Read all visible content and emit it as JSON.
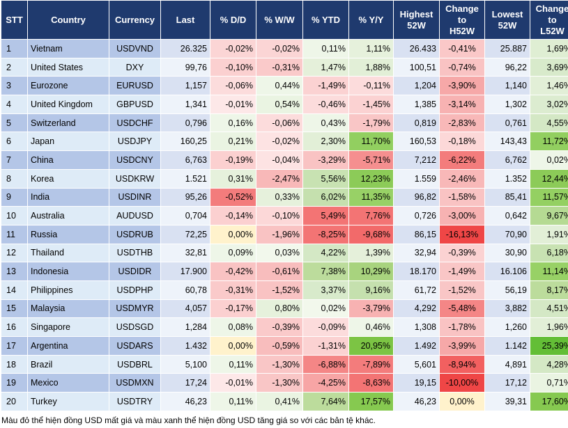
{
  "headers": {
    "stt": "STT",
    "country": "Country",
    "currency": "Currency",
    "last": "Last",
    "dd": "% D/D",
    "ww": "% W/W",
    "ytd": "% YTD",
    "yy": "% Y/Y",
    "high_l1": "Highest",
    "high_l2": "52W",
    "ch_l1": "Change",
    "ch_l2": "to",
    "ch_l3": "H52W",
    "low_l1": "Lowest",
    "low_l2": "52W",
    "cl_l1": "Change",
    "cl_l2": "to",
    "cl_l3": "L52W"
  },
  "rows": [
    {
      "stt": "1",
      "country": "Vietnam",
      "currency": "USDVND",
      "last": "26.325",
      "dd": "-0,02%",
      "ww": "-0,02%",
      "ytd": "0,11%",
      "yy": "1,11%",
      "high": "26.433",
      "chh": "-0,41%",
      "low": "25.887",
      "chl": "1,69%",
      "c_dd": "#fbd5d5",
      "c_ww": "#fbd5d5",
      "c_ytd": "#eef6e8",
      "c_yy": "#e6f1dc",
      "c_chh": "#fac8c8",
      "c_chl": "#dfeed3"
    },
    {
      "stt": "2",
      "country": "United States",
      "currency": "DXY",
      "last": "99,76",
      "dd": "-0,10%",
      "ww": "-0,31%",
      "ytd": "1,47%",
      "yy": "1,88%",
      "high": "100,51",
      "chh": "-0,74%",
      "low": "96,22",
      "chl": "3,69%",
      "c_dd": "#fbd0d0",
      "c_ww": "#facaca",
      "c_ytd": "#e5f0da",
      "c_yy": "#e2efd7",
      "c_chh": "#f9c3c3",
      "c_chl": "#d8eacb"
    },
    {
      "stt": "3",
      "country": "Eurozone",
      "currency": "EURUSD",
      "last": "1,157",
      "dd": "-0,06%",
      "ww": "0,44%",
      "ytd": "-1,49%",
      "yy": "-0,11%",
      "high": "1,204",
      "chh": "-3,90%",
      "low": "1,140",
      "chl": "1,46%",
      "c_dd": "#fcdcdc",
      "c_ww": "#eef6e8",
      "c_ytd": "#fbd2d2",
      "c_yy": "#fcdcdc",
      "c_chh": "#f6a8a8",
      "c_chl": "#e2efd7"
    },
    {
      "stt": "4",
      "country": "United Kingdom",
      "currency": "GBPUSD",
      "last": "1,341",
      "dd": "-0,01%",
      "ww": "0,54%",
      "ytd": "-0,46%",
      "yy": "-1,45%",
      "high": "1,385",
      "chh": "-3,14%",
      "low": "1,302",
      "chl": "3,02%",
      "c_dd": "#fde8e8",
      "c_ww": "#eaf4e2",
      "c_ytd": "#fcdcdc",
      "c_yy": "#fbd2d2",
      "c_chh": "#f7b2b2",
      "c_chl": "#dcecd0"
    },
    {
      "stt": "5",
      "country": "Switzerland",
      "currency": "USDCHF",
      "last": "0,796",
      "dd": "0,16%",
      "ww": "-0,06%",
      "ytd": "0,43%",
      "yy": "-1,79%",
      "high": "0,819",
      "chh": "-2,83%",
      "low": "0,761",
      "chl": "4,55%",
      "c_dd": "#eef6e8",
      "c_ww": "#fcdcdc",
      "c_ytd": "#eef6e8",
      "c_yy": "#f9c6c6",
      "c_chh": "#f8b8b8",
      "c_chl": "#d4e8c5"
    },
    {
      "stt": "6",
      "country": "Japan",
      "currency": "USDJPY",
      "last": "160,25",
      "dd": "0,21%",
      "ww": "-0,02%",
      "ytd": "2,30%",
      "yy": "11,70%",
      "high": "160,53",
      "chh": "-0,18%",
      "low": "143,43",
      "chl": "11,72%",
      "c_dd": "#eaf4e2",
      "c_ww": "#fde3e3",
      "c_ytd": "#e2efd7",
      "c_yy": "#92cf60",
      "c_chh": "#fcd8d8",
      "c_chl": "#92cf60"
    },
    {
      "stt": "7",
      "country": "China",
      "currency": "USDCNY",
      "last": "6,763",
      "dd": "-0,19%",
      "ww": "-0,04%",
      "ytd": "-3,29%",
      "yy": "-5,71%",
      "high": "7,212",
      "chh": "-6,22%",
      "low": "6,762",
      "chl": "0,02%",
      "c_dd": "#fbd0d0",
      "c_ww": "#fde3e3",
      "c_ytd": "#f9c3c3",
      "c_yy": "#f58f8f",
      "c_chh": "#f37c7c",
      "c_chl": "#eef6e8"
    },
    {
      "stt": "8",
      "country": "Korea",
      "currency": "USDKRW",
      "last": "1.521",
      "dd": "0,31%",
      "ww": "-2,47%",
      "ytd": "5,56%",
      "yy": "12,23%",
      "high": "1.559",
      "chh": "-2,46%",
      "low": "1.352",
      "chl": "12,44%",
      "c_dd": "#e6f1dc",
      "c_ww": "#f8b8b8",
      "c_ytd": "#c8e2b2",
      "c_yy": "#8ccb58",
      "c_chh": "#f8b8b8",
      "c_chl": "#8ccb58"
    },
    {
      "stt": "9",
      "country": "India",
      "currency": "USDINR",
      "last": "95,26",
      "dd": "-0,52%",
      "ww": "0,33%",
      "ytd": "6,02%",
      "yy": "11,35%",
      "high": "96,82",
      "chh": "-1,58%",
      "low": "85,41",
      "chl": "11,57%",
      "c_dd": "#f37c7c",
      "c_ww": "#e6f1dc",
      "c_ytd": "#c5e0ae",
      "c_yy": "#98d166",
      "c_chh": "#f9c3c3",
      "c_chl": "#94d062"
    },
    {
      "stt": "10",
      "country": "Australia",
      "currency": "AUDUSD",
      "last": "0,704",
      "dd": "-0,14%",
      "ww": "-0,10%",
      "ytd": "5,49%",
      "yy": "7,76%",
      "high": "0,726",
      "chh": "-3,00%",
      "low": "0,642",
      "chl": "9,67%",
      "c_dd": "#fbd0d0",
      "c_ww": "#fcd8d8",
      "c_ytd": "#f37474",
      "c_yy": "#f37474",
      "c_chh": "#f7b2b2",
      "c_chl": "#b5da93"
    },
    {
      "stt": "11",
      "country": "Russia",
      "currency": "USDRUB",
      "last": "72,25",
      "dd": "0,00%",
      "ww": "-1,96%",
      "ytd": "-8,25%",
      "yy": "-9,68%",
      "high": "86,15",
      "chh": "-16,13%",
      "low": "70,90",
      "chl": "1,91%",
      "c_dd": "#fff2cc",
      "c_ww": "#f9c3c3",
      "c_ytd": "#f37474",
      "c_yy": "#f26a6a",
      "c_chh": "#ef4646",
      "c_chl": "#e2efd7"
    },
    {
      "stt": "12",
      "country": "Thailand",
      "currency": "USDTHB",
      "last": "32,81",
      "dd": "0,09%",
      "ww": "0,03%",
      "ytd": "4,22%",
      "yy": "1,39%",
      "high": "32,94",
      "chh": "-0,39%",
      "low": "30,90",
      "chl": "6,18%",
      "c_dd": "#eef6e8",
      "c_ww": "#f2f8ec",
      "c_ytd": "#d4e8c5",
      "c_yy": "#e5f0da",
      "c_chh": "#fbd2d2",
      "c_chl": "#c8e2b2"
    },
    {
      "stt": "13",
      "country": "Indonesia",
      "currency": "USDIDR",
      "last": "17.900",
      "dd": "-0,42%",
      "ww": "-0,61%",
      "ytd": "7,38%",
      "yy": "10,29%",
      "high": "18.170",
      "chh": "-1,49%",
      "low": "16.106",
      "chl": "11,14%",
      "c_dd": "#f9c3c3",
      "c_ww": "#f8bdbd",
      "c_ytd": "#bcdc9c",
      "c_yy": "#a8d37e",
      "c_chh": "#f9c6c6",
      "c_chl": "#98d166"
    },
    {
      "stt": "14",
      "country": "Philippines",
      "currency": "USDPHP",
      "last": "60,78",
      "dd": "-0,31%",
      "ww": "-1,52%",
      "ytd": "3,37%",
      "yy": "9,16%",
      "high": "61,72",
      "chh": "-1,52%",
      "low": "56,19",
      "chl": "8,17%",
      "c_dd": "#facaca",
      "c_ww": "#f9c3c3",
      "c_ytd": "#d8eacb",
      "c_yy": "#c5e0ae",
      "c_chh": "#f9c6c6",
      "c_chl": "#bcdc9c"
    },
    {
      "stt": "15",
      "country": "Malaysia",
      "currency": "USDMYR",
      "last": "4,057",
      "dd": "-0,17%",
      "ww": "0,80%",
      "ytd": "0,02%",
      "yy": "-3,79%",
      "high": "4,292",
      "chh": "-5,48%",
      "low": "3,882",
      "chl": "4,51%",
      "c_dd": "#fbd0d0",
      "c_ww": "#e6f1dc",
      "c_ytd": "#f2f8ec",
      "c_yy": "#f7b2b2",
      "c_chh": "#f48686",
      "c_chl": "#d4e8c5"
    },
    {
      "stt": "16",
      "country": "Singapore",
      "currency": "USDSGD",
      "last": "1,284",
      "dd": "0,08%",
      "ww": "-0,39%",
      "ytd": "-0,09%",
      "yy": "0,46%",
      "high": "1,308",
      "chh": "-1,78%",
      "low": "1,260",
      "chl": "1,96%",
      "c_dd": "#eef6e8",
      "c_ww": "#facaca",
      "c_ytd": "#fcdcdc",
      "c_yy": "#eef6e8",
      "c_chh": "#f9c3c3",
      "c_chl": "#e2efd7"
    },
    {
      "stt": "17",
      "country": "Argentina",
      "currency": "USDARS",
      "last": "1.432",
      "dd": "0,00%",
      "ww": "-0,59%",
      "ytd": "-1,31%",
      "yy": "20,95%",
      "high": "1.492",
      "chh": "-3,99%",
      "low": "1.142",
      "chl": "25,39%",
      "c_dd": "#fff2cc",
      "c_ww": "#f8bdbd",
      "c_ytd": "#fbd2d2",
      "c_yy": "#7cc444",
      "c_chh": "#f6a8a8",
      "c_chl": "#63be36"
    },
    {
      "stt": "18",
      "country": "Brazil",
      "currency": "USDBRL",
      "last": "5,100",
      "dd": "0,11%",
      "ww": "-1,30%",
      "ytd": "-6,88%",
      "yy": "-7,89%",
      "high": "5,601",
      "chh": "-8,94%",
      "low": "4,891",
      "chl": "4,28%",
      "c_dd": "#eef6e8",
      "c_ww": "#f9c6c6",
      "c_ytd": "#f48686",
      "c_yy": "#f37c7c",
      "c_chh": "#f26060",
      "c_chl": "#d4e8c5"
    },
    {
      "stt": "19",
      "country": "Mexico",
      "currency": "USDMXN",
      "last": "17,24",
      "dd": "-0,01%",
      "ww": "-1,30%",
      "ytd": "-4,25%",
      "yy": "-8,63%",
      "high": "19,15",
      "chh": "-10,00%",
      "low": "17,12",
      "chl": "0,71%",
      "c_dd": "#fde8e8",
      "c_ww": "#f9c6c6",
      "c_ytd": "#f7a5a5",
      "c_yy": "#f37474",
      "c_chh": "#ef4646",
      "c_chl": "#eaf4e2"
    },
    {
      "stt": "20",
      "country": "Turkey",
      "currency": "USDTRY",
      "last": "46,23",
      "dd": "0,11%",
      "ww": "0,41%",
      "ytd": "7,64%",
      "yy": "17,57%",
      "high": "46,23",
      "chh": "0,00%",
      "low": "39,31",
      "chl": "17,60%",
      "c_dd": "#eef6e8",
      "c_ww": "#eaf4e2",
      "c_ytd": "#bcdc9c",
      "c_yy": "#86c950",
      "c_chh": "#fff2cc",
      "c_chl": "#86c950"
    }
  ],
  "note": "Màu đỏ thể hiện đồng USD mất giá và màu xanh thể hiện đồng USD tăng giá so với các bản tệ khác."
}
